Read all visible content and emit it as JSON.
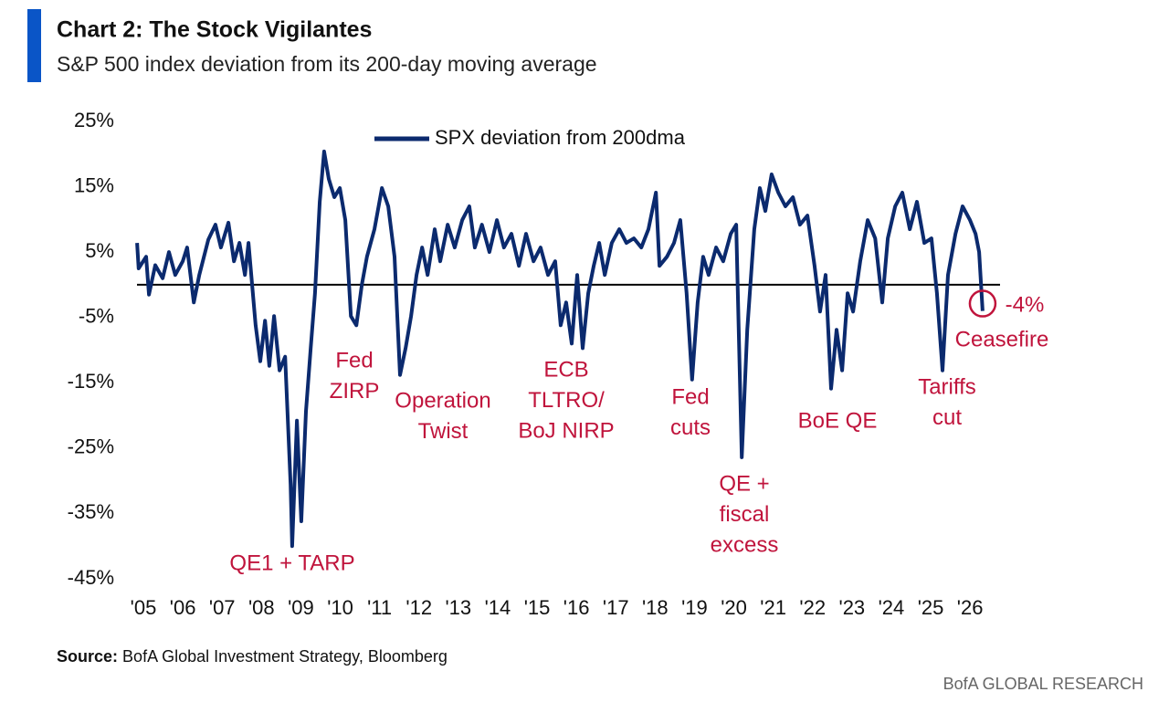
{
  "chart_data": {
    "type": "line",
    "title": "Chart 2: The Stock Vigilantes",
    "subtitle": "S&P 500 index deviation from its 200-day moving average",
    "source_label": "Source:",
    "source": "BofA Global Investment Strategy, Bloomberg",
    "footer": "BofA GLOBAL RESEARCH",
    "x": [
      2004.84,
      2004.88,
      2005.07,
      2005.14,
      2005.3,
      2005.49,
      2005.65,
      2005.81,
      2006.0,
      2006.11,
      2006.28,
      2006.42,
      2006.65,
      2006.83,
      2006.97,
      2007.16,
      2007.3,
      2007.44,
      2007.58,
      2007.67,
      2007.85,
      2007.97,
      2008.09,
      2008.2,
      2008.32,
      2008.46,
      2008.6,
      2008.74,
      2008.78,
      2008.9,
      2009.01,
      2009.13,
      2009.25,
      2009.36,
      2009.48,
      2009.59,
      2009.71,
      2009.85,
      2009.99,
      2010.13,
      2010.27,
      2010.41,
      2010.55,
      2010.68,
      2010.87,
      2011.06,
      2011.22,
      2011.38,
      2011.52,
      2011.66,
      2011.8,
      2011.94,
      2012.08,
      2012.22,
      2012.4,
      2012.54,
      2012.73,
      2012.91,
      2013.1,
      2013.28,
      2013.42,
      2013.6,
      2013.79,
      2013.98,
      2014.16,
      2014.35,
      2014.54,
      2014.72,
      2014.91,
      2015.09,
      2015.28,
      2015.46,
      2015.6,
      2015.74,
      2015.88,
      2016.02,
      2016.16,
      2016.3,
      2016.44,
      2016.58,
      2016.72,
      2016.9,
      2017.09,
      2017.27,
      2017.46,
      2017.65,
      2017.83,
      2018.02,
      2018.11,
      2018.3,
      2018.48,
      2018.64,
      2018.8,
      2018.94,
      2019.08,
      2019.22,
      2019.36,
      2019.55,
      2019.73,
      2019.92,
      2020.06,
      2020.2,
      2020.34,
      2020.52,
      2020.66,
      2020.8,
      2020.96,
      2021.13,
      2021.31,
      2021.5,
      2021.68,
      2021.87,
      2022.05,
      2022.19,
      2022.33,
      2022.47,
      2022.61,
      2022.75,
      2022.89,
      2023.03,
      2023.21,
      2023.4,
      2023.59,
      2023.77,
      2023.91,
      2024.1,
      2024.28,
      2024.47,
      2024.65,
      2024.84,
      2025.02,
      2025.16,
      2025.3,
      2025.44,
      2025.63,
      2025.81,
      2026.0,
      2026.14,
      2026.23,
      2026.32
    ],
    "series": [
      {
        "name": "SPX deviation from 200dma",
        "color": "#0b2a6e",
        "values": [
          6.4,
          2.5,
          4.3,
          -1.5,
          3,
          1,
          5,
          1.5,
          3.6,
          5.7,
          -2.7,
          1.5,
          6.9,
          9.2,
          5.7,
          9.5,
          3.6,
          6.4,
          1.5,
          6.4,
          -6.2,
          -11.7,
          -5.5,
          -12.4,
          -4.8,
          -13.1,
          -11,
          -30.6,
          -40,
          -20.8,
          -36.2,
          -19.4,
          -9.7,
          -1.3,
          12.7,
          20.4,
          16.2,
          13.4,
          14.8,
          9.9,
          -4.8,
          -6.2,
          0,
          4.3,
          8.5,
          14.8,
          12,
          4.3,
          -13.8,
          -9.7,
          -4.8,
          1.5,
          5.7,
          1.5,
          8.5,
          3.6,
          9.2,
          5.7,
          9.9,
          12,
          5.7,
          9.2,
          5,
          9.9,
          5.7,
          7.8,
          2.9,
          7.8,
          3.6,
          5.7,
          1.5,
          3.6,
          -6.2,
          -2.7,
          -9,
          1.5,
          -9.7,
          -1.3,
          2.9,
          6.4,
          1.5,
          6.4,
          8.5,
          6.4,
          7.1,
          5.7,
          8.5,
          14.1,
          2.9,
          4.3,
          6.4,
          9.9,
          -1.3,
          -14.5,
          -2.7,
          4.3,
          1.5,
          5.7,
          3.6,
          7.8,
          9.2,
          -26.4,
          -6.9,
          8.5,
          14.8,
          11.3,
          16.9,
          14.1,
          12,
          13.4,
          9.2,
          10.6,
          2.9,
          -4.1,
          1.5,
          -15.9,
          -6.9,
          -13.1,
          -1.3,
          -4.1,
          3.6,
          9.9,
          7.1,
          -2.7,
          7.1,
          12,
          14.1,
          8.5,
          12.7,
          6.4,
          7.1,
          -1.3,
          -13.1,
          1.5,
          7.8,
          12,
          9.9,
          7.8,
          5,
          -4
        ]
      }
    ],
    "xlim": [
      2004.8,
      2026.6
    ],
    "xticks": [
      {
        "value": 2005,
        "label": "'05"
      },
      {
        "value": 2006,
        "label": "'06"
      },
      {
        "value": 2007,
        "label": "'07"
      },
      {
        "value": 2008,
        "label": "'08"
      },
      {
        "value": 2009,
        "label": "'09"
      },
      {
        "value": 2010,
        "label": "'10"
      },
      {
        "value": 2011,
        "label": "'11"
      },
      {
        "value": 2012,
        "label": "'12"
      },
      {
        "value": 2013,
        "label": "'13"
      },
      {
        "value": 2014,
        "label": "'14"
      },
      {
        "value": 2015,
        "label": "'15"
      },
      {
        "value": 2016,
        "label": "'16"
      },
      {
        "value": 2017,
        "label": "'17"
      },
      {
        "value": 2018,
        "label": "'18"
      },
      {
        "value": 2019,
        "label": "'19"
      },
      {
        "value": 2020,
        "label": "'20"
      },
      {
        "value": 2021,
        "label": "'21"
      },
      {
        "value": 2022,
        "label": "'22"
      },
      {
        "value": 2023,
        "label": "'23"
      },
      {
        "value": 2024,
        "label": "'24"
      },
      {
        "value": 2025,
        "label": "'25"
      },
      {
        "value": 2026,
        "label": "'26"
      }
    ],
    "ylim": [
      -45,
      25
    ],
    "yticks": [
      {
        "value": 25,
        "label": "25%"
      },
      {
        "value": 15,
        "label": "15%"
      },
      {
        "value": 5,
        "label": "5%"
      },
      {
        "value": -5,
        "label": "-5%"
      },
      {
        "value": -15,
        "label": "-15%"
      },
      {
        "value": -25,
        "label": "-25%"
      },
      {
        "value": -35,
        "label": "-35%"
      },
      {
        "value": -45,
        "label": "-45%"
      }
    ],
    "reference_line": 0,
    "annotation_color": "#c0143c",
    "annotations": [
      {
        "lines": [
          "QE1 + TARP"
        ]
      },
      {
        "lines": [
          "Fed",
          "ZIRP"
        ]
      },
      {
        "lines": [
          "Operation",
          "Twist"
        ]
      },
      {
        "lines": [
          "ECB",
          "TLTRO/",
          "BoJ NIRP"
        ]
      },
      {
        "lines": [
          "Fed",
          "cuts"
        ]
      },
      {
        "lines": [
          "QE +",
          "fiscal",
          "excess"
        ]
      },
      {
        "lines": [
          "BoE QE"
        ]
      },
      {
        "lines": [
          "Tariffs",
          "cut"
        ]
      },
      {
        "lines": [
          "-4%"
        ]
      },
      {
        "lines": [
          "Ceasefire"
        ]
      }
    ]
  }
}
